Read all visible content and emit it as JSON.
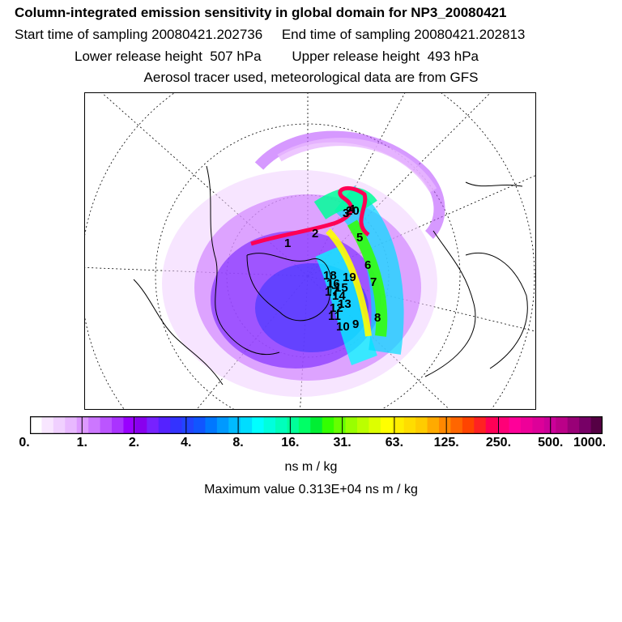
{
  "titles": [
    "Column-integrated emission sensitivity in global domain for NP3_20080421",
    "Start time of sampling 20080421.202736     End time of sampling 20080421.202813",
    "Lower release height  507 hPa        Upper release height  493 hPa",
    "Aerosol tracer used, meteorological data are from GFS"
  ],
  "chart_data": {
    "type": "heatmap",
    "title": "Column-integrated emission sensitivity in global domain for NP3_20080421",
    "projection": "north polar stereographic",
    "colorbar": {
      "units": "ns m / kg",
      "tick_labels": [
        "0.",
        "1.",
        "2.",
        "4.",
        "8.",
        "16.",
        "31.",
        "63.",
        "125.",
        "250.",
        "500.",
        "1000."
      ],
      "colors": [
        "#ffffff",
        "#f8e6ff",
        "#f0d0ff",
        "#e8b8ff",
        "#dd99ff",
        "#cc77ff",
        "#bb55ff",
        "#aa33ff",
        "#9900ff",
        "#8800ee",
        "#7722ff",
        "#5522ff",
        "#3333ff",
        "#2244ff",
        "#1155ff",
        "#0077ff",
        "#0099ff",
        "#00bbff",
        "#00ddff",
        "#00ffff",
        "#00ffdd",
        "#00ffbb",
        "#00ff99",
        "#00ff66",
        "#00ee33",
        "#33ff00",
        "#66ff00",
        "#99ff00",
        "#bbff00",
        "#ddff00",
        "#ffff00",
        "#ffee00",
        "#ffdd00",
        "#ffcc00",
        "#ffaa00",
        "#ff8800",
        "#ff6600",
        "#ff4400",
        "#ff2222",
        "#ff0055",
        "#ff0077",
        "#ff0099",
        "#ee0099",
        "#dd0099",
        "#cc0099",
        "#bb0088",
        "#990077",
        "#770066",
        "#550044"
      ],
      "boxed_every": 4
    },
    "trajectory_labels": [
      "1",
      "2",
      "3",
      "4",
      "5",
      "6",
      "7",
      "8",
      "9",
      "10",
      "11",
      "12",
      "13",
      "14",
      "15",
      "16",
      "17",
      "18",
      "19",
      "20"
    ],
    "max_value_text": "Maximum value  0.313E+04 ns m / kg",
    "max_value": 3130
  },
  "colors": {
    "frame": "#000000",
    "coast": "#000000",
    "grid": "#000000"
  }
}
